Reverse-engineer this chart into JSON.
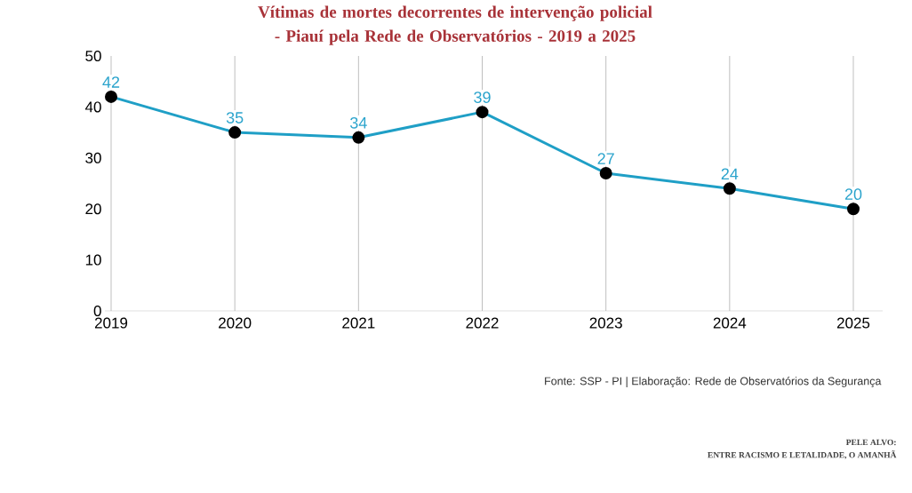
{
  "chart_data": {
    "type": "line",
    "title": "Vítimas de mortes decorrentes de intervenção policial - Piauí pela Rede de Observatórios - 2019 a 2025",
    "categories": [
      "2019",
      "2020",
      "2021",
      "2022",
      "2023",
      "2024",
      "2025"
    ],
    "values": [
      42,
      35,
      34,
      39,
      27,
      24,
      20
    ],
    "color": "#1f9fc6",
    "ylim": [
      0,
      50
    ],
    "yticks": [
      0,
      10,
      20,
      30,
      40,
      50
    ],
    "grid": "x",
    "marker": "circle",
    "line_style": "solid",
    "data_labels": true,
    "annotations": [
      "Fonte: SSP - PI | Elaboração: Rede de Observatórios da Segurança",
      "PELE ALVO:",
      "ENTRE RACISMO E LETALIDADE, O AMANHÃ"
    ]
  }
}
